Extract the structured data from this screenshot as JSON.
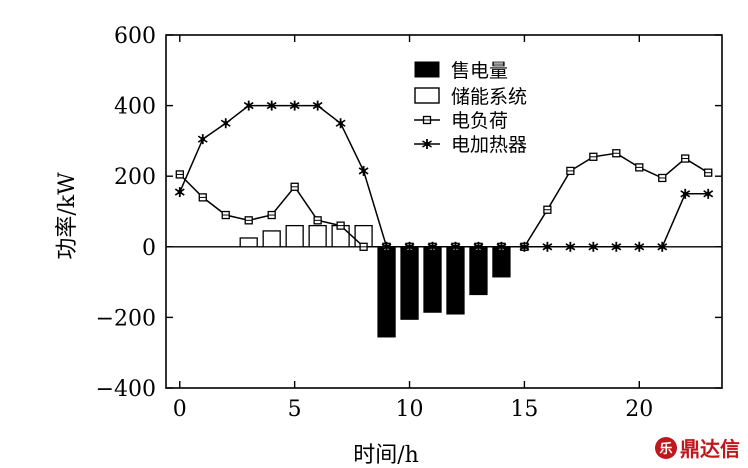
{
  "chart_data": {
    "type": "bar",
    "xlabel": "时间/h",
    "ylabel": "功率/kW",
    "xlim": [
      -0.6,
      23.6
    ],
    "ylim": [
      -400,
      600
    ],
    "xticks": [
      0,
      5,
      10,
      15,
      20
    ],
    "yticks": [
      600,
      400,
      200,
      0,
      -200,
      -400
    ],
    "ytick_labels": [
      "600",
      "400",
      "200",
      "0",
      "−200",
      "−400"
    ],
    "legend_position": "top-center",
    "series": [
      {
        "name": "售电量",
        "kind": "bar-filled",
        "color": "#000000",
        "x": [
          9,
          10,
          11,
          12,
          13,
          14
        ],
        "values": [
          -255,
          -205,
          -185,
          -190,
          -135,
          -85
        ]
      },
      {
        "name": "储能系统",
        "kind": "bar-hollow",
        "color": "#000000",
        "x": [
          3,
          4,
          5,
          6,
          7,
          8
        ],
        "values": [
          25,
          45,
          60,
          60,
          60,
          60
        ]
      },
      {
        "name": "电负荷",
        "kind": "line-square",
        "color": "#000000",
        "x": [
          0,
          1,
          2,
          3,
          4,
          5,
          6,
          7,
          8,
          9,
          10,
          11,
          12,
          13,
          14,
          15,
          16,
          17,
          18,
          19,
          20,
          21,
          22,
          23
        ],
        "values": [
          205,
          140,
          90,
          75,
          90,
          170,
          75,
          60,
          0,
          0,
          0,
          0,
          0,
          0,
          0,
          0,
          105,
          215,
          255,
          265,
          225,
          195,
          250,
          210
        ]
      },
      {
        "name": "电加热器",
        "kind": "line-star",
        "color": "#000000",
        "x": [
          0,
          1,
          2,
          3,
          4,
          5,
          6,
          7,
          8,
          9,
          10,
          11,
          12,
          13,
          14,
          15,
          16,
          17,
          18,
          19,
          20,
          21,
          22,
          23
        ],
        "values": [
          155,
          305,
          350,
          400,
          400,
          400,
          400,
          350,
          215,
          0,
          0,
          0,
          0,
          0,
          0,
          0,
          0,
          0,
          0,
          0,
          0,
          0,
          150,
          150
        ]
      }
    ]
  },
  "watermark": {
    "seal": "乐",
    "text": "鼎达信"
  }
}
